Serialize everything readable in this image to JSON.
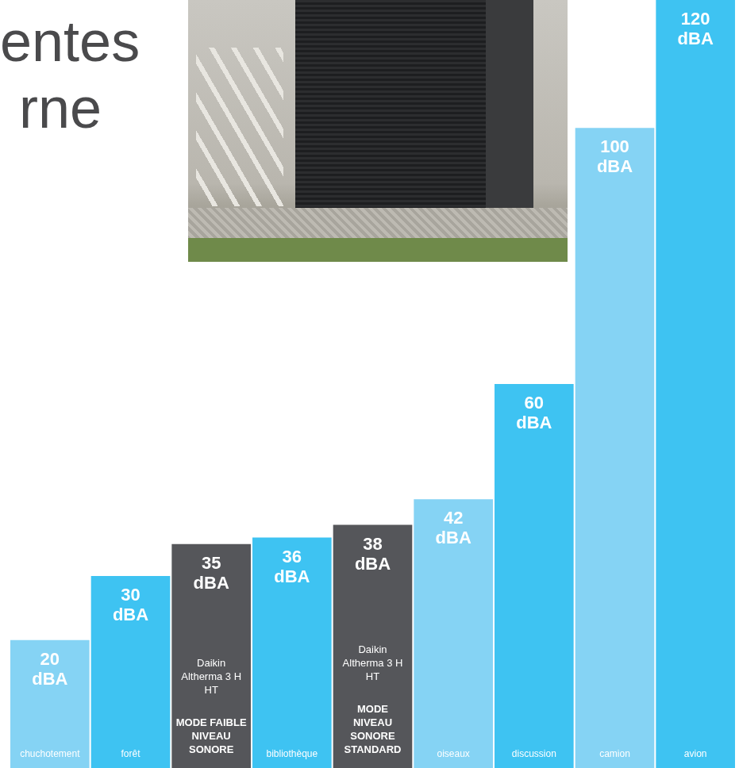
{
  "chart_data": {
    "type": "bar",
    "title": [
      "entes",
      "rne"
    ],
    "categories": [
      "chuchotement",
      "forêt",
      "Daikin Altherma 3 H HT",
      "bibliothèque",
      "Daikin Altherma 3 H HT",
      "oiseaux",
      "discussion",
      "camion",
      "avion"
    ],
    "annotations": [
      null,
      null,
      "MODE FAIBLE NIVEAU SONORE",
      null,
      "MODE NIVEAU SONORE STANDARD",
      null,
      null,
      null,
      null
    ],
    "values": [
      20,
      30,
      35,
      36,
      38,
      42,
      60,
      100,
      120
    ],
    "value_labels": [
      "20 dBA",
      "30 dBA",
      "35 dBA",
      "36 dBA",
      "38 dBA",
      "42 dBA",
      "60 dBA",
      "100 dBA",
      "120 dBA"
    ],
    "colors": [
      "#85d3f4",
      "#3ec3f2",
      "#55565a",
      "#3ec3f2",
      "#55565a",
      "#85d3f4",
      "#3ec3f2",
      "#85d3f4",
      "#3ec3f2"
    ],
    "ylim": [
      0,
      120
    ],
    "data_labels": true,
    "tick_labels": false,
    "grid": false
  }
}
